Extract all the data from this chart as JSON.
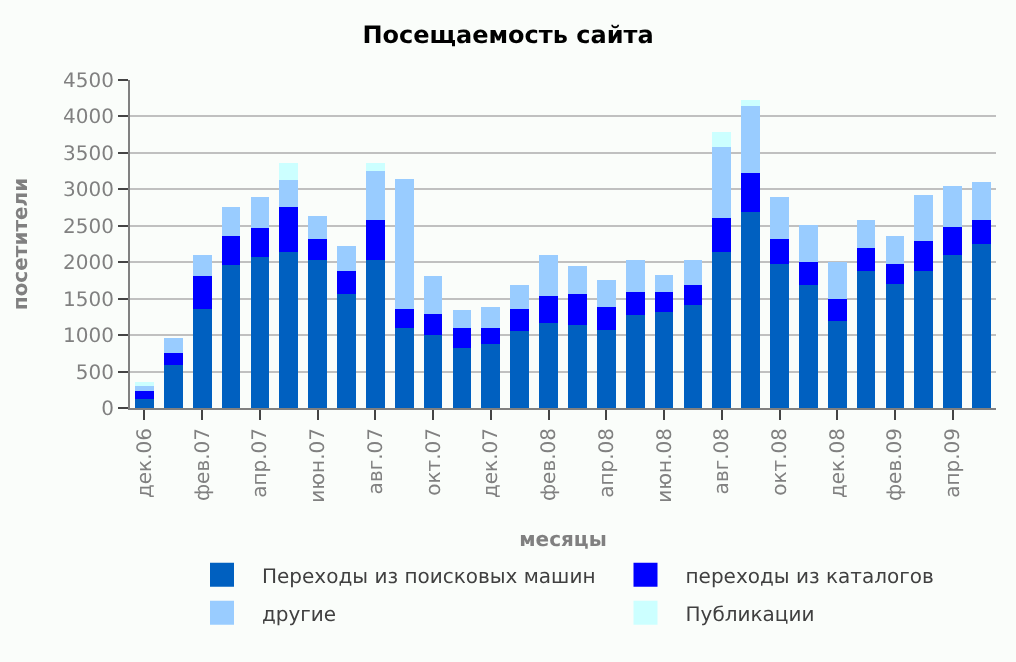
{
  "chart_data": {
    "type": "bar",
    "stacked": true,
    "title": "Посещаемость сайта",
    "xlabel": "месяцы",
    "ylabel": "посетители",
    "categories": [
      "дек.06",
      null,
      "фев.07",
      null,
      "апр.07",
      null,
      "июн.07",
      null,
      "авг.07",
      null,
      "окт.07",
      null,
      "дек.07",
      null,
      "фев.08",
      null,
      "апр.08",
      null,
      "июн.08",
      null,
      "авг.08",
      null,
      "окт.08",
      null,
      "дек.08",
      null,
      "фев.09",
      null,
      "апр.09",
      null
    ],
    "series": [
      {
        "name": "Переходы из поисковых машин",
        "color": "#0060c0",
        "values": [
          130,
          590,
          1365,
          1960,
          2075,
          2145,
          2030,
          1560,
          2025,
          1100,
          1000,
          830,
          880,
          1050,
          1170,
          1145,
          1075,
          1270,
          1315,
          1415,
          2145,
          2685,
          1975,
          1685,
          1195,
          1880,
          1705,
          1880,
          2100,
          2245
        ]
      },
      {
        "name": "переходы из каталогов",
        "color": "#0000ff",
        "values": [
          100,
          170,
          440,
          405,
          390,
          610,
          285,
          320,
          560,
          265,
          290,
          270,
          220,
          315,
          365,
          415,
          315,
          315,
          270,
          270,
          465,
          535,
          340,
          315,
          295,
          315,
          270,
          410,
          390,
          340
        ]
      },
      {
        "name": "другие",
        "color": "#99ccff",
        "values": [
          95,
          195,
          295,
          390,
          435,
          375,
          320,
          340,
          660,
          1780,
          515,
          240,
          290,
          320,
          565,
          390,
          365,
          440,
          245,
          340,
          975,
          950,
          585,
          510,
          510,
          390,
          390,
          635,
          560,
          515
        ]
      },
      {
        "name": "Публикации",
        "color": "#ccffff",
        "values": [
          5,
          null,
          null,
          null,
          null,
          235,
          null,
          null,
          120,
          null,
          null,
          null,
          null,
          null,
          null,
          null,
          null,
          null,
          null,
          null,
          195,
          50,
          null,
          null,
          null,
          null,
          null,
          null,
          null,
          null
        ]
      }
    ],
    "ylim": [
      0,
      4500
    ],
    "yticks": [
      0,
      500,
      1000,
      1500,
      2000,
      2500,
      3000,
      3500,
      4000,
      4500
    ],
    "grid": "y",
    "legend": "bottom"
  }
}
